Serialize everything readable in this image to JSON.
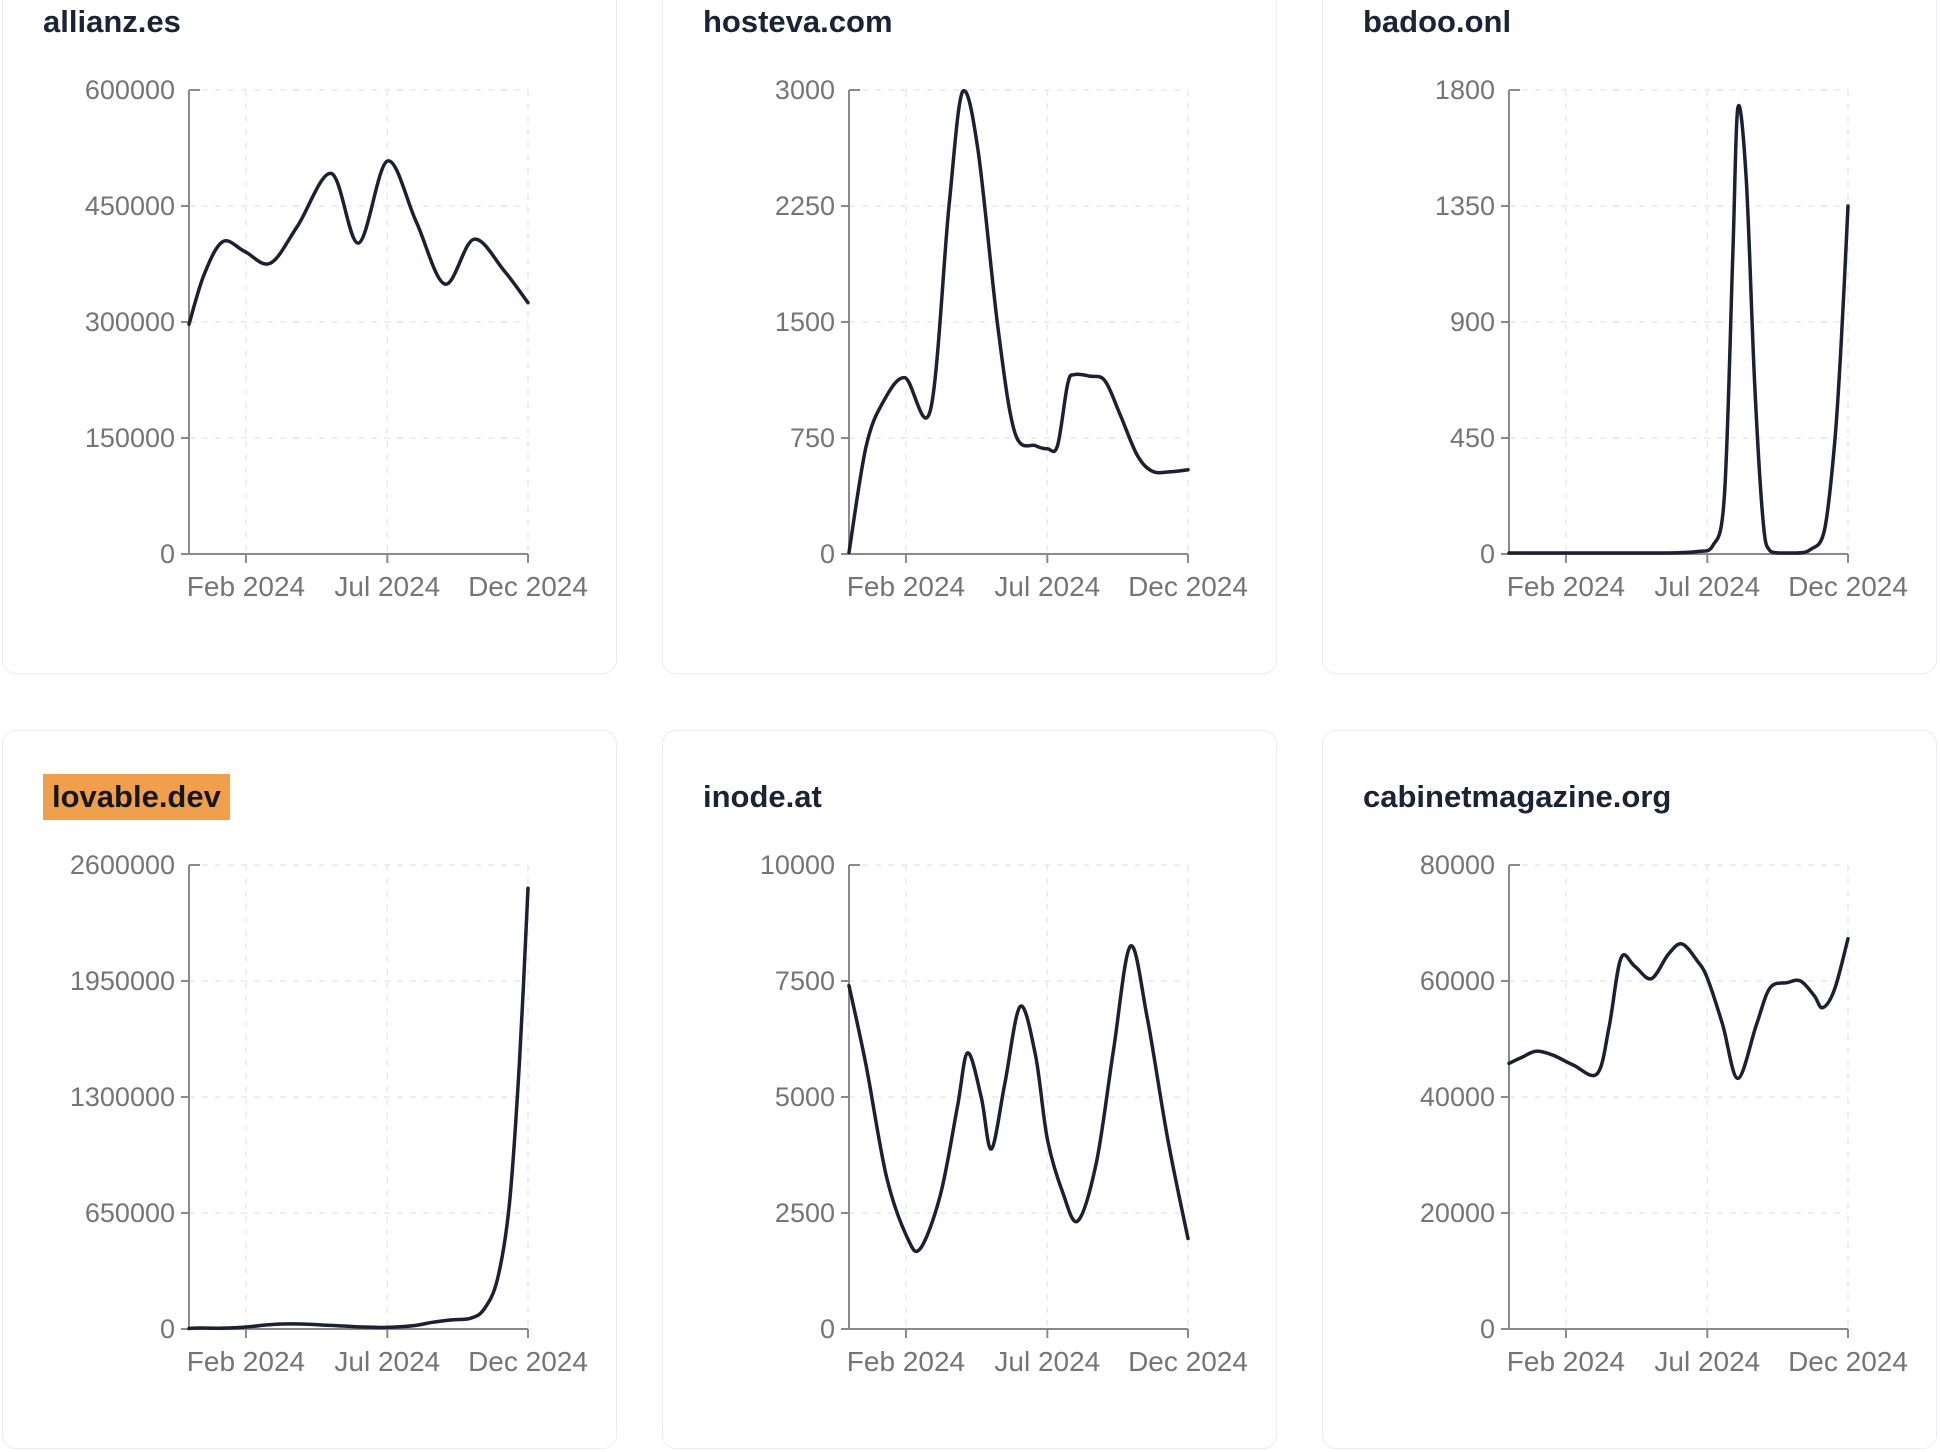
{
  "style": {
    "line_color": "#1a2133",
    "axis_color": "#8a8a8a",
    "tick_label_color": "#757575",
    "grid_color": "#e9e9e9",
    "card_border_color": "#eceaf2",
    "title_color": "#1b2337",
    "highlight_color": "#f0a04d",
    "background": "#ffffff"
  },
  "chart_data": [
    {
      "type": "line",
      "title": "allianz.es",
      "highlighted": false,
      "ylim": [
        0,
        600000
      ],
      "y_ticks": [
        0,
        150000,
        300000,
        450000,
        600000
      ],
      "x_tick_labels": [
        "Feb 2024",
        "Jul 2024",
        "Dec 2024"
      ],
      "x_tick_positions": [
        0.168,
        0.585,
        1.0
      ],
      "grid": "dashed",
      "points": [
        [
          0.0,
          297000
        ],
        [
          0.045,
          362000
        ],
        [
          0.1,
          404000
        ],
        [
          0.165,
          391000
        ],
        [
          0.24,
          376000
        ],
        [
          0.32,
          424000
        ],
        [
          0.42,
          492000
        ],
        [
          0.5,
          402000
        ],
        [
          0.585,
          508000
        ],
        [
          0.67,
          430000
        ],
        [
          0.755,
          349000
        ],
        [
          0.84,
          407000
        ],
        [
          0.93,
          366000
        ],
        [
          1.0,
          325000
        ]
      ]
    },
    {
      "type": "line",
      "title": "hosteva.com",
      "highlighted": false,
      "ylim": [
        0,
        3000
      ],
      "y_ticks": [
        0,
        750,
        1500,
        2250,
        3000
      ],
      "x_tick_labels": [
        "Feb 2024",
        "Jul 2024",
        "Dec 2024"
      ],
      "x_tick_positions": [
        0.168,
        0.585,
        1.0
      ],
      "grid": "dashed",
      "points": [
        [
          0.0,
          10
        ],
        [
          0.05,
          690
        ],
        [
          0.1,
          980
        ],
        [
          0.165,
          1140
        ],
        [
          0.24,
          930
        ],
        [
          0.295,
          2250
        ],
        [
          0.335,
          2990
        ],
        [
          0.38,
          2620
        ],
        [
          0.44,
          1450
        ],
        [
          0.49,
          780
        ],
        [
          0.55,
          700
        ],
        [
          0.585,
          680
        ],
        [
          0.615,
          700
        ],
        [
          0.645,
          1100
        ],
        [
          0.665,
          1160
        ],
        [
          0.71,
          1150
        ],
        [
          0.755,
          1120
        ],
        [
          0.8,
          900
        ],
        [
          0.85,
          640
        ],
        [
          0.895,
          535
        ],
        [
          0.95,
          532
        ],
        [
          1.0,
          545
        ]
      ]
    },
    {
      "type": "line",
      "title": "badoo.onl",
      "highlighted": false,
      "ylim": [
        0,
        1800
      ],
      "y_ticks": [
        0,
        450,
        900,
        1350,
        1800
      ],
      "x_tick_labels": [
        "Feb 2024",
        "Jul 2024",
        "Dec 2024"
      ],
      "x_tick_positions": [
        0.168,
        0.585,
        1.0
      ],
      "grid": "dashed",
      "points": [
        [
          0.0,
          4
        ],
        [
          0.1,
          4
        ],
        [
          0.2,
          4
        ],
        [
          0.3,
          4
        ],
        [
          0.4,
          4
        ],
        [
          0.5,
          5
        ],
        [
          0.56,
          10
        ],
        [
          0.6,
          30
        ],
        [
          0.635,
          220
        ],
        [
          0.66,
          1150
        ],
        [
          0.675,
          1730
        ],
        [
          0.7,
          1450
        ],
        [
          0.725,
          650
        ],
        [
          0.75,
          120
        ],
        [
          0.77,
          12
        ],
        [
          0.8,
          4
        ],
        [
          0.85,
          4
        ],
        [
          0.89,
          18
        ],
        [
          0.93,
          90
        ],
        [
          0.96,
          420
        ],
        [
          0.98,
          820
        ],
        [
          1.0,
          1350
        ]
      ]
    },
    {
      "type": "line",
      "title": "lovable.dev",
      "highlighted": true,
      "ylim": [
        0,
        2600000
      ],
      "y_ticks": [
        0,
        650000,
        1300000,
        1950000,
        2600000
      ],
      "x_tick_labels": [
        "Feb 2024",
        "Jul 2024",
        "Dec 2024"
      ],
      "x_tick_positions": [
        0.168,
        0.585,
        1.0
      ],
      "grid": "dashed",
      "points": [
        [
          0.0,
          3000
        ],
        [
          0.08,
          4000
        ],
        [
          0.16,
          10000
        ],
        [
          0.25,
          26000
        ],
        [
          0.33,
          28000
        ],
        [
          0.42,
          20000
        ],
        [
          0.5,
          12000
        ],
        [
          0.58,
          9000
        ],
        [
          0.66,
          18000
        ],
        [
          0.72,
          38000
        ],
        [
          0.78,
          52000
        ],
        [
          0.83,
          60000
        ],
        [
          0.87,
          110000
        ],
        [
          0.91,
          280000
        ],
        [
          0.945,
          700000
        ],
        [
          0.975,
          1500000
        ],
        [
          1.0,
          2470000
        ]
      ]
    },
    {
      "type": "line",
      "title": "inode.at",
      "highlighted": false,
      "ylim": [
        0,
        10000
      ],
      "y_ticks": [
        0,
        2500,
        5000,
        7500,
        10000
      ],
      "x_tick_labels": [
        "Feb 2024",
        "Jul 2024",
        "Dec 2024"
      ],
      "x_tick_positions": [
        0.168,
        0.585,
        1.0
      ],
      "grid": "dashed",
      "points": [
        [
          0.0,
          7400
        ],
        [
          0.05,
          5700
        ],
        [
          0.11,
          3300
        ],
        [
          0.17,
          2000
        ],
        [
          0.21,
          1730
        ],
        [
          0.27,
          2900
        ],
        [
          0.32,
          4800
        ],
        [
          0.35,
          5950
        ],
        [
          0.39,
          5000
        ],
        [
          0.42,
          3880
        ],
        [
          0.46,
          5300
        ],
        [
          0.505,
          6950
        ],
        [
          0.55,
          5900
        ],
        [
          0.585,
          4100
        ],
        [
          0.63,
          2950
        ],
        [
          0.675,
          2330
        ],
        [
          0.73,
          3600
        ],
        [
          0.78,
          6000
        ],
        [
          0.83,
          8250
        ],
        [
          0.88,
          6700
        ],
        [
          0.94,
          4100
        ],
        [
          1.0,
          1950
        ]
      ]
    },
    {
      "type": "line",
      "title": "cabinetmagazine.org",
      "highlighted": false,
      "ylim": [
        0,
        80000
      ],
      "y_ticks": [
        0,
        20000,
        40000,
        60000,
        80000
      ],
      "x_tick_labels": [
        "Feb 2024",
        "Jul 2024",
        "Dec 2024"
      ],
      "x_tick_positions": [
        0.168,
        0.585,
        1.0
      ],
      "grid": "dashed",
      "points": [
        [
          0.0,
          45800
        ],
        [
          0.04,
          46900
        ],
        [
          0.08,
          47900
        ],
        [
          0.13,
          47200
        ],
        [
          0.19,
          45500
        ],
        [
          0.26,
          44000
        ],
        [
          0.295,
          52000
        ],
        [
          0.33,
          63900
        ],
        [
          0.37,
          62600
        ],
        [
          0.42,
          60400
        ],
        [
          0.47,
          64600
        ],
        [
          0.51,
          66400
        ],
        [
          0.555,
          63500
        ],
        [
          0.585,
          60500
        ],
        [
          0.63,
          52500
        ],
        [
          0.675,
          43200
        ],
        [
          0.73,
          52500
        ],
        [
          0.77,
          58800
        ],
        [
          0.82,
          59700
        ],
        [
          0.86,
          60000
        ],
        [
          0.9,
          57500
        ],
        [
          0.925,
          55400
        ],
        [
          0.96,
          58500
        ],
        [
          1.0,
          67300
        ]
      ]
    }
  ]
}
